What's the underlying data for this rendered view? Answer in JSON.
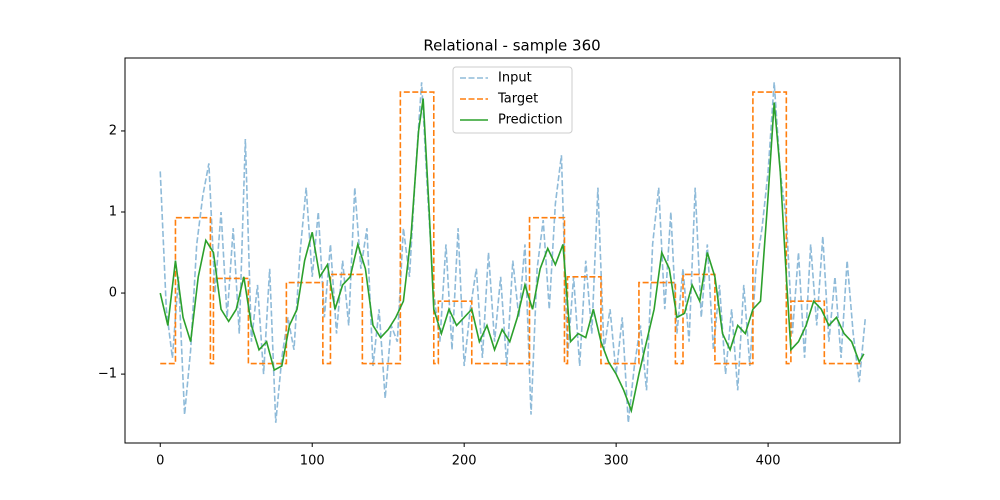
{
  "chart_data": {
    "type": "line",
    "title": "Relational - sample 360",
    "xlim": [
      -23.2,
      486.8
    ],
    "ylim": [
      -1.85,
      2.9
    ],
    "xticks": [
      0,
      100,
      200,
      300,
      400
    ],
    "yticks": [
      {
        "value": -1,
        "label": "−1"
      },
      0,
      1,
      2
    ],
    "legend": "upper center",
    "series": [
      {
        "name": "Input",
        "color": "#1f77b4",
        "opacity": 0.5,
        "linestyle": "dashed",
        "x": [
          0,
          4,
          8,
          12,
          16,
          20,
          24,
          28,
          32,
          36,
          40,
          44,
          48,
          52,
          56,
          60,
          64,
          68,
          72,
          76,
          80,
          84,
          88,
          92,
          96,
          100,
          104,
          108,
          112,
          116,
          120,
          124,
          128,
          132,
          136,
          140,
          144,
          148,
          152,
          156,
          160,
          164,
          168,
          172,
          176,
          180,
          184,
          188,
          192,
          196,
          200,
          204,
          208,
          212,
          216,
          220,
          224,
          228,
          232,
          236,
          240,
          244,
          248,
          252,
          256,
          260,
          264,
          268,
          272,
          276,
          280,
          284,
          288,
          292,
          296,
          300,
          304,
          308,
          312,
          316,
          320,
          324,
          328,
          332,
          336,
          340,
          344,
          348,
          352,
          356,
          360,
          364,
          368,
          372,
          376,
          380,
          384,
          388,
          392,
          396,
          400,
          404,
          408,
          412,
          416,
          420,
          424,
          428,
          432,
          436,
          440,
          444,
          448,
          452,
          456,
          460,
          464
        ],
        "values": [
          1.5,
          -0.2,
          -0.8,
          0.2,
          -1.5,
          -0.7,
          0.6,
          1.2,
          1.6,
          0.0,
          1.0,
          -0.3,
          0.8,
          -0.5,
          1.9,
          -0.6,
          0.1,
          -1.0,
          0.3,
          -1.6,
          -0.8,
          -0.3,
          -0.7,
          0.5,
          1.3,
          0.2,
          1.0,
          -0.3,
          0.6,
          -0.5,
          0.4,
          -0.4,
          1.3,
          0.3,
          0.8,
          -0.9,
          -0.2,
          -1.3,
          -0.4,
          -0.6,
          0.8,
          0.2,
          1.5,
          2.6,
          1.2,
          0.0,
          -0.6,
          0.6,
          -0.7,
          0.8,
          -0.9,
          -0.2,
          0.3,
          -0.8,
          0.5,
          -0.6,
          0.2,
          -0.9,
          0.4,
          -0.3,
          0.6,
          -1.5,
          0.3,
          0.9,
          -0.2,
          1.1,
          1.7,
          -0.8,
          0.2,
          -0.9,
          0.4,
          -0.5,
          1.3,
          -0.7,
          -0.2,
          -1.0,
          -0.3,
          -1.6,
          -0.9,
          -0.4,
          -1.2,
          0.6,
          1.3,
          -0.2,
          1.0,
          -0.5,
          0.3,
          -0.6,
          1.3,
          -0.3,
          0.6,
          -0.7,
          0.1,
          -1.0,
          -0.2,
          -1.2,
          0.1,
          -0.9,
          0.3,
          0.8,
          1.5,
          2.6,
          1.5,
          0.9,
          -0.5,
          0.5,
          -0.8,
          0.6,
          -0.4,
          0.7,
          -0.6,
          0.2,
          -0.8,
          0.4,
          -0.5,
          -1.1,
          -0.3
        ]
      },
      {
        "name": "Target",
        "color": "#ff7f0e",
        "opacity": 1,
        "linestyle": "dashed",
        "x": [
          0,
          10,
          10,
          33,
          33,
          35,
          35,
          58,
          58,
          83,
          83,
          107,
          107,
          112,
          112,
          133,
          133,
          158,
          158,
          180,
          180,
          183,
          183,
          205,
          205,
          243,
          243,
          266,
          266,
          268,
          268,
          290,
          290,
          315,
          315,
          339,
          339,
          344,
          344,
          365,
          365,
          390,
          390,
          412,
          412,
          415,
          415,
          437,
          437,
          462
        ],
        "values": [
          -0.87,
          -0.87,
          0.93,
          0.93,
          -0.87,
          -0.87,
          0.18,
          0.18,
          -0.87,
          -0.87,
          0.13,
          0.13,
          -0.87,
          -0.87,
          0.23,
          0.23,
          -0.87,
          -0.87,
          2.48,
          2.48,
          -0.87,
          -0.87,
          -0.1,
          -0.1,
          -0.87,
          -0.87,
          0.93,
          0.93,
          -0.87,
          -0.87,
          0.2,
          0.2,
          -0.87,
          -0.87,
          0.13,
          0.13,
          -0.87,
          -0.87,
          0.23,
          0.23,
          -0.87,
          -0.87,
          2.48,
          2.48,
          -0.87,
          -0.87,
          -0.1,
          -0.1,
          -0.87,
          -0.87
        ]
      },
      {
        "name": "Prediction",
        "color": "#2ca02c",
        "opacity": 1,
        "linestyle": "solid",
        "x": [
          0,
          5,
          10,
          15,
          20,
          25,
          30,
          35,
          40,
          45,
          50,
          55,
          60,
          65,
          70,
          75,
          80,
          85,
          90,
          95,
          100,
          105,
          110,
          115,
          120,
          125,
          130,
          135,
          140,
          145,
          150,
          155,
          160,
          165,
          170,
          173,
          177,
          180,
          185,
          190,
          195,
          200,
          205,
          210,
          215,
          220,
          225,
          230,
          235,
          240,
          245,
          250,
          255,
          260,
          265,
          270,
          275,
          280,
          285,
          290,
          295,
          300,
          305,
          310,
          315,
          320,
          325,
          330,
          335,
          340,
          345,
          350,
          355,
          360,
          365,
          370,
          375,
          380,
          385,
          390,
          395,
          400,
          404,
          408,
          412,
          415,
          420,
          425,
          430,
          435,
          440,
          445,
          450,
          455,
          460,
          463
        ],
        "values": [
          0,
          -0.4,
          0.4,
          -0.3,
          -0.6,
          0.2,
          0.65,
          0.5,
          -0.2,
          -0.35,
          -0.2,
          0.2,
          -0.4,
          -0.7,
          -0.6,
          -0.95,
          -0.9,
          -0.4,
          -0.2,
          0.4,
          0.75,
          0.2,
          0.35,
          -0.2,
          0.1,
          0.2,
          0.6,
          0.3,
          -0.4,
          -0.55,
          -0.45,
          -0.3,
          -0.1,
          0.7,
          2.0,
          2.4,
          1.0,
          -0.2,
          -0.5,
          -0.2,
          -0.4,
          -0.3,
          -0.2,
          -0.6,
          -0.4,
          -0.7,
          -0.45,
          -0.6,
          -0.3,
          0.1,
          -0.2,
          0.3,
          0.55,
          0.35,
          0.6,
          -0.6,
          -0.5,
          -0.55,
          -0.2,
          -0.6,
          -0.85,
          -1.0,
          -1.2,
          -1.45,
          -1.0,
          -0.6,
          -0.2,
          0.5,
          0.3,
          -0.3,
          -0.25,
          0.1,
          -0.1,
          0.5,
          0.2,
          -0.5,
          -0.7,
          -0.4,
          -0.5,
          -0.2,
          -0.1,
          1.2,
          2.35,
          1.5,
          0.2,
          -0.7,
          -0.6,
          -0.4,
          -0.1,
          -0.2,
          -0.4,
          -0.3,
          -0.5,
          -0.6,
          -0.85,
          -0.75
        ]
      }
    ]
  }
}
